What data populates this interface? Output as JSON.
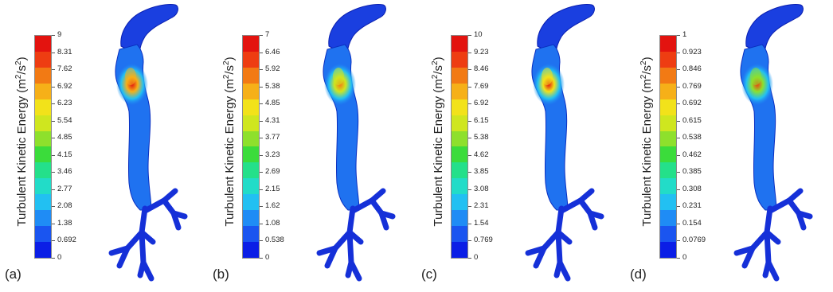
{
  "axis_title": {
    "prefix": "Turbulent Kinetic Energy (m",
    "sup1": "2",
    "mid": "/s",
    "sup2": "2",
    "suffix": ")"
  },
  "colors": [
    "#0b1ee6",
    "#1a55f0",
    "#1f8cf5",
    "#22c0f2",
    "#22dcc8",
    "#24e08a",
    "#3bdc3b",
    "#8ee02c",
    "#cfe61f",
    "#f2e21a",
    "#f6b018",
    "#f27a14",
    "#ee3d12",
    "#e3130f"
  ],
  "panels": [
    {
      "label": "(a)",
      "ticks": [
        "9",
        "8.31",
        "7.62",
        "6.92",
        "6.23",
        "5.54",
        "4.85",
        "4.15",
        "3.46",
        "2.77",
        "2.08",
        "1.38",
        "0.692",
        "0"
      ],
      "peak": "#e3130f",
      "peak2": "#f6b018"
    },
    {
      "label": "(b)",
      "ticks": [
        "7",
        "6.46",
        "5.92",
        "5.38",
        "4.85",
        "4.31",
        "3.77",
        "3.23",
        "2.69",
        "2.15",
        "1.62",
        "1.08",
        "0.538",
        "0"
      ],
      "peak": "#f27a14",
      "peak2": "#cfe61f"
    },
    {
      "label": "(c)",
      "ticks": [
        "10",
        "9.23",
        "8.46",
        "7.69",
        "6.92",
        "6.15",
        "5.38",
        "4.62",
        "3.85",
        "3.08",
        "2.31",
        "1.54",
        "0.769",
        "0"
      ],
      "peak": "#e3130f",
      "peak2": "#f2e21a"
    },
    {
      "label": "(d)",
      "ticks": [
        "1",
        "0.923",
        "0.846",
        "0.769",
        "0.692",
        "0.615",
        "0.538",
        "0.462",
        "0.385",
        "0.308",
        "0.231",
        "0.154",
        "0.0769",
        "0"
      ],
      "peak": "#ee3d12",
      "peak2": "#8ee02c"
    }
  ]
}
